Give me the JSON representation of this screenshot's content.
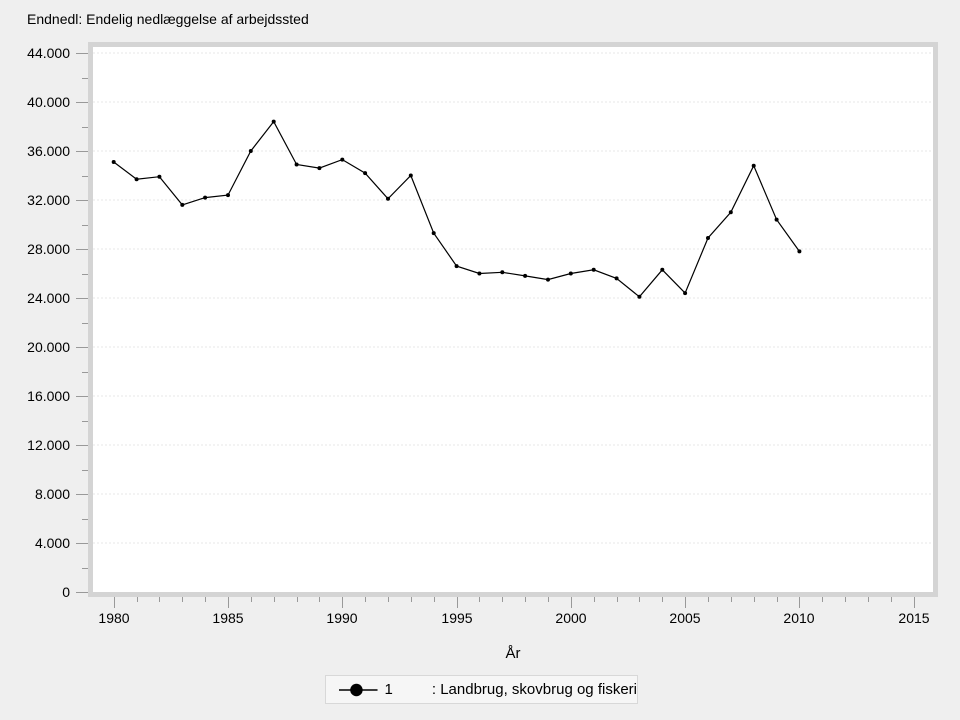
{
  "title": "Endnedl: Endelig nedlæggelse af arbejdssted",
  "chart_data": {
    "type": "line",
    "title": "Endnedl: Endelig nedlæggelse af arbejdssted",
    "xlabel": "År",
    "ylabel": "",
    "x": [
      1980,
      1981,
      1982,
      1983,
      1984,
      1985,
      1986,
      1987,
      1988,
      1989,
      1990,
      1991,
      1992,
      1993,
      1994,
      1995,
      1996,
      1997,
      1998,
      1999,
      2000,
      2001,
      2002,
      2003,
      2004,
      2005,
      2006,
      2007,
      2008,
      2009,
      2010
    ],
    "series": [
      {
        "name": "1",
        "label": ": Landbrug, skovbrug og fiskeri",
        "color": "#000000",
        "marker": "dot",
        "values": [
          35100,
          33700,
          33900,
          31600,
          32200,
          32400,
          36000,
          38400,
          34900,
          34600,
          35300,
          34200,
          32100,
          34000,
          29300,
          26600,
          26000,
          26100,
          25800,
          25500,
          26000,
          26300,
          25600,
          24100,
          26300,
          24400,
          28900,
          31000,
          34800,
          30400,
          27800
        ]
      }
    ],
    "xlim": [
      1979.1,
      2015.9
    ],
    "ylim": [
      0,
      44000
    ],
    "grid": "horizontal-dashed",
    "legend_position": "bottom",
    "x_axis": {
      "major_ticks": [
        1980,
        1985,
        1990,
        1995,
        2000,
        2005,
        2010,
        2015
      ],
      "minor_tick_step_years": 1,
      "minor_range": [
        1980,
        2015
      ]
    },
    "y_axis": {
      "minor_tick_step": 2000,
      "majors": [
        {
          "value": 0,
          "label": "0"
        },
        {
          "value": 4000,
          "label": "4.000"
        },
        {
          "value": 8000,
          "label": "8.000"
        },
        {
          "value": 12000,
          "label": "12.000"
        },
        {
          "value": 16000,
          "label": "16.000"
        },
        {
          "value": 20000,
          "label": "20.000"
        },
        {
          "value": 24000,
          "label": "24.000"
        },
        {
          "value": 28000,
          "label": "28.000"
        },
        {
          "value": 32000,
          "label": "32.000"
        },
        {
          "value": 36000,
          "label": "36.000"
        },
        {
          "value": 40000,
          "label": "40.000"
        },
        {
          "value": 44000,
          "label": "44.000"
        }
      ]
    }
  },
  "legend": {
    "series_id": "1",
    "series_label": ": Landbrug, skovbrug og fiskeri"
  },
  "colors": {
    "background": "#efefef",
    "plot_background": "#ffffff",
    "plot_border": "#d4d4d4",
    "gridline": "#e7e7e7",
    "tick": "#999999",
    "series": "#000000",
    "legend_border": "#d8d8d8",
    "legend_background": "#f6f6f6"
  }
}
